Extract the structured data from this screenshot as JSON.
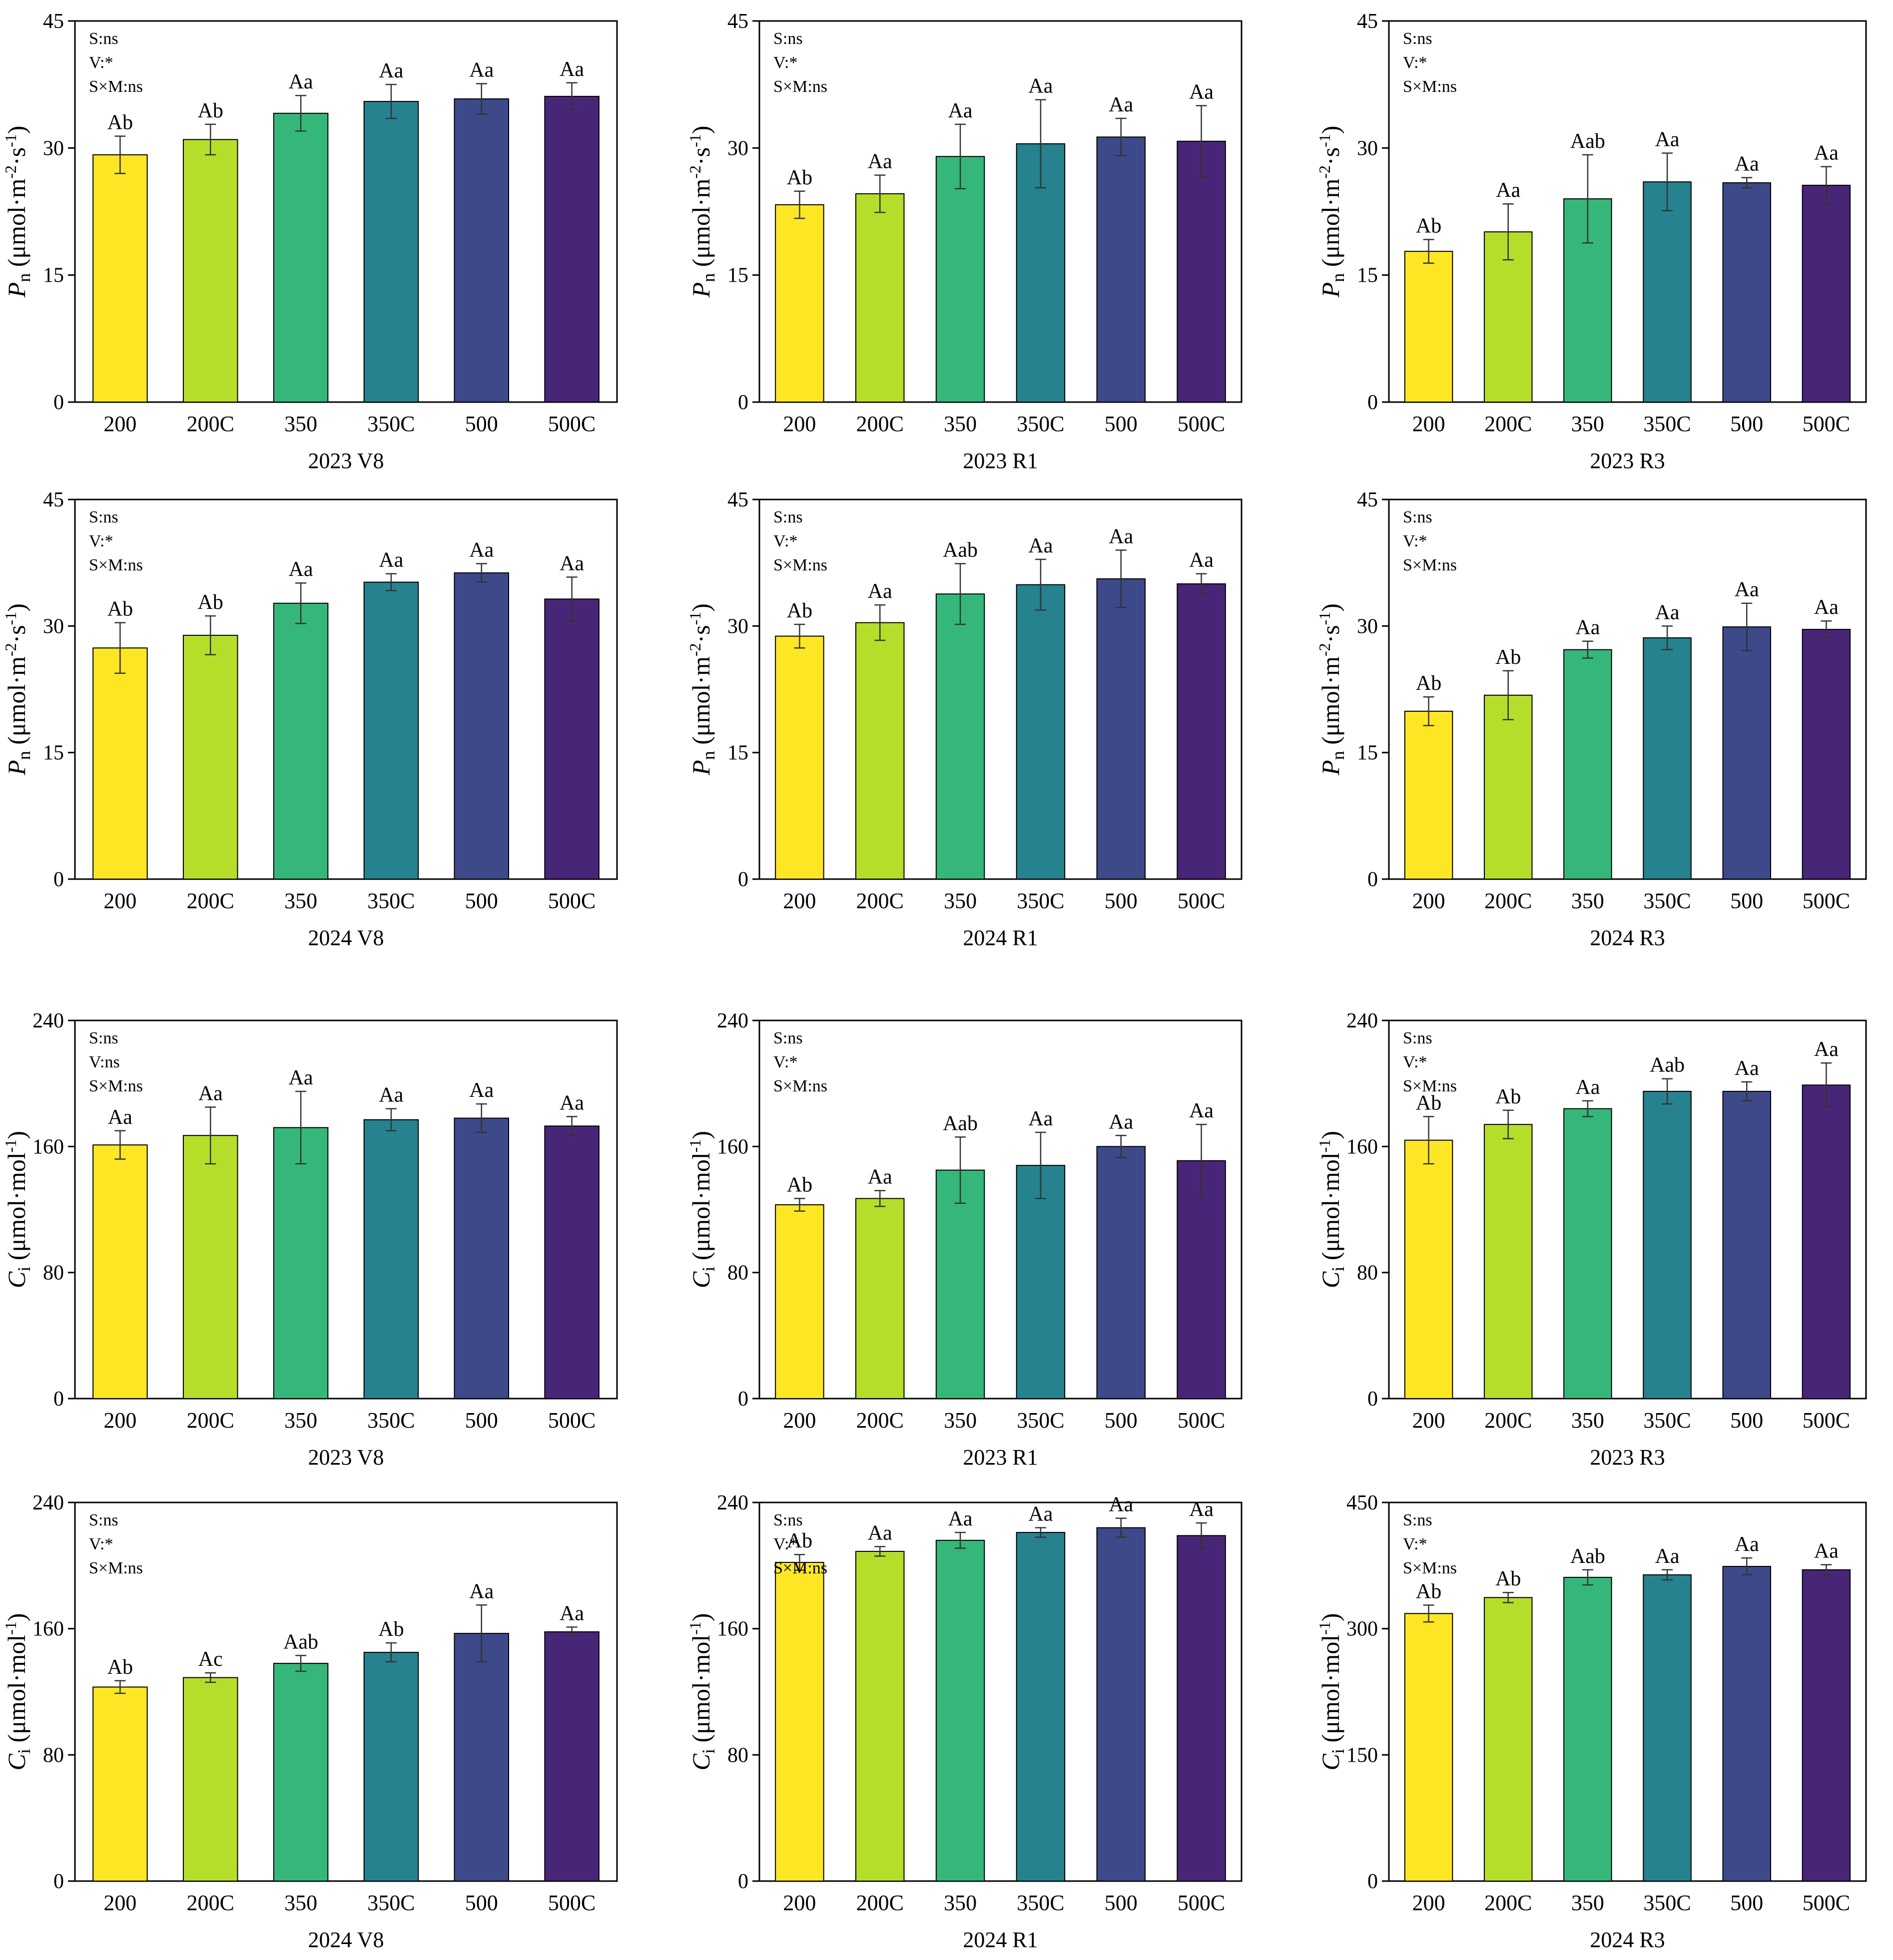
{
  "colors": {
    "bars": [
      "#fde725",
      "#b5de2b",
      "#35b779",
      "#26828e",
      "#3e4989",
      "#482677"
    ],
    "axis": "#000000",
    "errorbar": "#333333"
  },
  "chart_data": [
    {
      "type": "bar",
      "title": "2023 V8",
      "ylabel": "Pn (μmol·m⁻²·s⁻¹)",
      "ylabel_parts": {
        "main": "P",
        "sub": "n",
        "unit": "(μmol·m",
        "exp1": "-2",
        "mid": "·s",
        "exp2": "-1",
        "end": ")"
      },
      "ylim": [
        0,
        45
      ],
      "yticks": [
        0,
        15,
        30,
        45
      ],
      "categories": [
        "200",
        "200C",
        "350",
        "350C",
        "500",
        "500C"
      ],
      "values": [
        29.2,
        31.0,
        34.1,
        35.5,
        35.8,
        36.1
      ],
      "errors": [
        2.2,
        1.8,
        2.1,
        2.0,
        1.8,
        1.6
      ],
      "letters": [
        "Ab",
        "Ab",
        "Aa",
        "Aa",
        "Aa",
        "Aa"
      ],
      "stats": [
        "S:ns",
        "V:*",
        "S×M:ns"
      ]
    },
    {
      "type": "bar",
      "title": "2023 R1",
      "ylabel": "Pn (μmol·m⁻²·s⁻¹)",
      "ylabel_parts": {
        "main": "P",
        "sub": "n",
        "unit": "(μmol·m",
        "exp1": "-2",
        "mid": "·s",
        "exp2": "-1",
        "end": ")"
      },
      "ylim": [
        0,
        45
      ],
      "yticks": [
        0,
        15,
        30,
        45
      ],
      "categories": [
        "200",
        "200C",
        "350",
        "350C",
        "500",
        "500C"
      ],
      "values": [
        23.3,
        24.6,
        29.0,
        30.5,
        31.3,
        30.8
      ],
      "errors": [
        1.6,
        2.2,
        3.8,
        5.2,
        2.2,
        4.2
      ],
      "letters": [
        "Ab",
        "Aa",
        "Aa",
        "Aa",
        "Aa",
        "Aa"
      ],
      "stats": [
        "S:ns",
        "V:*",
        "S×M:ns"
      ]
    },
    {
      "type": "bar",
      "title": "2023 R3",
      "ylabel": "Pn (μmol·m⁻²·s⁻¹)",
      "ylabel_parts": {
        "main": "P",
        "sub": "n",
        "unit": "(μmol·m",
        "exp1": "-2",
        "mid": "·s",
        "exp2": "-1",
        "end": ")"
      },
      "ylim": [
        0,
        45
      ],
      "yticks": [
        0,
        15,
        30,
        45
      ],
      "categories": [
        "200",
        "200C",
        "350",
        "350C",
        "500",
        "500C"
      ],
      "values": [
        17.8,
        20.1,
        24.0,
        26.0,
        25.9,
        25.6
      ],
      "errors": [
        1.4,
        3.3,
        5.2,
        3.4,
        0.6,
        2.2
      ],
      "letters": [
        "Ab",
        "Aa",
        "Aab",
        "Aa",
        "Aa",
        "Aa"
      ],
      "stats": [
        "S:ns",
        "V:*",
        "S×M:ns"
      ]
    },
    {
      "type": "bar",
      "title": "2024 V8",
      "ylabel": "Pn (μmol·m⁻²·s⁻¹)",
      "ylabel_parts": {
        "main": "P",
        "sub": "n",
        "unit": "(μmol·m",
        "exp1": "-2",
        "mid": "·s",
        "exp2": "-1",
        "end": ")"
      },
      "ylim": [
        0,
        45
      ],
      "yticks": [
        0,
        15,
        30,
        45
      ],
      "categories": [
        "200",
        "200C",
        "350",
        "350C",
        "500",
        "500C"
      ],
      "values": [
        27.4,
        28.9,
        32.7,
        35.2,
        36.3,
        33.2
      ],
      "errors": [
        3.0,
        2.3,
        2.4,
        1.0,
        1.1,
        2.6
      ],
      "letters": [
        "Ab",
        "Ab",
        "Aa",
        "Aa",
        "Aa",
        "Aa"
      ],
      "stats": [
        "S:ns",
        "V:*",
        "S×M:ns"
      ]
    },
    {
      "type": "bar",
      "title": "2024 R1",
      "ylabel": "Pn (μmol·m⁻²·s⁻¹)",
      "ylabel_parts": {
        "main": "P",
        "sub": "n",
        "unit": "(μmol·m",
        "exp1": "-2",
        "mid": "·s",
        "exp2": "-1",
        "end": ")"
      },
      "ylim": [
        0,
        45
      ],
      "yticks": [
        0,
        15,
        30,
        45
      ],
      "categories": [
        "200",
        "200C",
        "350",
        "350C",
        "500",
        "500C"
      ],
      "values": [
        28.8,
        30.4,
        33.8,
        34.9,
        35.6,
        35.0
      ],
      "errors": [
        1.4,
        2.1,
        3.6,
        3.0,
        3.4,
        1.2
      ],
      "letters": [
        "Ab",
        "Aa",
        "Aab",
        "Aa",
        "Aa",
        "Aa"
      ],
      "stats": [
        "S:ns",
        "V:*",
        "S×M:ns"
      ]
    },
    {
      "type": "bar",
      "title": "2024 R3",
      "ylabel": "Pn (μmol·m⁻²·s⁻¹)",
      "ylabel_parts": {
        "main": "P",
        "sub": "n",
        "unit": "(μmol·m",
        "exp1": "-2",
        "mid": "·s",
        "exp2": "-1",
        "end": ")"
      },
      "ylim": [
        0,
        45
      ],
      "yticks": [
        0,
        15,
        30,
        45
      ],
      "categories": [
        "200",
        "200C",
        "350",
        "350C",
        "500",
        "500C"
      ],
      "values": [
        19.9,
        21.8,
        27.2,
        28.6,
        29.9,
        29.6
      ],
      "errors": [
        1.7,
        2.9,
        1.0,
        1.4,
        2.8,
        1.0
      ],
      "letters": [
        "Ab",
        "Ab",
        "Aa",
        "Aa",
        "Aa",
        "Aa"
      ],
      "stats": [
        "S:ns",
        "V:*",
        "S×M:ns"
      ]
    },
    {
      "type": "bar",
      "title": "2023 V8",
      "ylabel": "Ci (μmol·mol⁻¹)",
      "ylabel_parts": {
        "main": "C",
        "sub": "i",
        "unit": "(μmol·mol",
        "exp1": "-1",
        "mid": "",
        "exp2": "",
        "end": ")"
      },
      "ylim": [
        0,
        240
      ],
      "yticks": [
        0,
        80,
        160,
        240
      ],
      "categories": [
        "200",
        "200C",
        "350",
        "350C",
        "500",
        "500C"
      ],
      "values": [
        161,
        167,
        172,
        177,
        178,
        173
      ],
      "errors": [
        9,
        18,
        23,
        7,
        9,
        6
      ],
      "letters": [
        "Aa",
        "Aa",
        "Aa",
        "Aa",
        "Aa",
        "Aa"
      ],
      "stats": [
        "S:ns",
        "V:ns",
        "S×M:ns"
      ]
    },
    {
      "type": "bar",
      "title": "2023 R1",
      "ylabel": "Ci (μmol·mol⁻¹)",
      "ylabel_parts": {
        "main": "C",
        "sub": "i",
        "unit": "(μmol·mol",
        "exp1": "-1",
        "mid": "",
        "exp2": "",
        "end": ")"
      },
      "ylim": [
        0,
        240
      ],
      "yticks": [
        0,
        80,
        160,
        240
      ],
      "categories": [
        "200",
        "200C",
        "350",
        "350C",
        "500",
        "500C"
      ],
      "values": [
        123,
        127,
        145,
        148,
        160,
        151
      ],
      "errors": [
        4,
        5,
        21,
        21,
        7,
        23
      ],
      "letters": [
        "Ab",
        "Aa",
        "Aab",
        "Aa",
        "Aa",
        "Aa"
      ],
      "stats": [
        "S:ns",
        "V:*",
        "S×M:ns"
      ]
    },
    {
      "type": "bar",
      "title": "2023 R3",
      "ylabel": "Ci (μmol·mol⁻¹)",
      "ylabel_parts": {
        "main": "C",
        "sub": "i",
        "unit": "(μmol·mol",
        "exp1": "-1",
        "mid": "",
        "exp2": "",
        "end": ")"
      },
      "ylim": [
        0,
        240
      ],
      "yticks": [
        0,
        80,
        160,
        240
      ],
      "categories": [
        "200",
        "200C",
        "350",
        "350C",
        "500",
        "500C"
      ],
      "values": [
        164,
        174,
        184,
        195,
        195,
        199
      ],
      "errors": [
        15,
        9,
        5,
        8,
        6,
        14
      ],
      "letters": [
        "Ab",
        "Ab",
        "Aa",
        "Aab",
        "Aa",
        "Aa"
      ],
      "stats": [
        "S:ns",
        "V:*",
        "S×M:ns"
      ]
    },
    {
      "type": "bar",
      "title": "2024 V8",
      "ylabel": "Ci (μmol·mol⁻¹)",
      "ylabel_parts": {
        "main": "C",
        "sub": "i",
        "unit": "(μmol·mol",
        "exp1": "-1",
        "mid": "",
        "exp2": "",
        "end": ")"
      },
      "ylim": [
        0,
        240
      ],
      "yticks": [
        0,
        80,
        160,
        240
      ],
      "categories": [
        "200",
        "200C",
        "350",
        "350C",
        "500",
        "500C"
      ],
      "values": [
        123,
        129,
        138,
        145,
        157,
        158
      ],
      "errors": [
        4,
        3,
        5,
        6,
        18,
        3
      ],
      "letters": [
        "Ab",
        "Ac",
        "Aab",
        "Ab",
        "Aa",
        "Aa"
      ],
      "stats": [
        "S:ns",
        "V:*",
        "S×M:ns"
      ]
    },
    {
      "type": "bar",
      "title": "2024 R1",
      "ylabel": "Ci (μmol·mol⁻¹)",
      "ylabel_parts": {
        "main": "C",
        "sub": "i",
        "unit": "(μmol·mol",
        "exp1": "-1",
        "mid": "",
        "exp2": "",
        "end": ")"
      },
      "ylim": [
        0,
        240
      ],
      "yticks": [
        0,
        80,
        160,
        240
      ],
      "categories": [
        "200",
        "200C",
        "350",
        "350C",
        "500",
        "500C"
      ],
      "values": [
        202,
        209,
        216,
        221,
        224,
        219
      ],
      "errors": [
        5,
        3,
        5,
        3,
        6,
        8
      ],
      "letters": [
        "Ab",
        "Aa",
        "Aa",
        "Aa",
        "Aa",
        "Aa"
      ],
      "stats": [
        "S:ns",
        "V:*",
        "S×M:ns"
      ]
    },
    {
      "type": "bar",
      "title": "2024 R3",
      "ylabel": "Ci (μmol·mol⁻¹)",
      "ylabel_parts": {
        "main": "C",
        "sub": "i",
        "unit": "(μmol·mol",
        "exp1": "-1",
        "mid": "",
        "exp2": "",
        "end": ")"
      },
      "ylim": [
        0,
        450
      ],
      "yticks": [
        0,
        150,
        300,
        450
      ],
      "categories": [
        "200",
        "200C",
        "350",
        "350C",
        "500",
        "500C"
      ],
      "values": [
        318,
        337,
        361,
        364,
        374,
        370
      ],
      "errors": [
        10,
        6,
        9,
        6,
        10,
        6
      ],
      "letters": [
        "Ab",
        "Ab",
        "Aab",
        "Aa",
        "Aa",
        "Aa"
      ],
      "stats": [
        "S:ns",
        "V:*",
        "S×M:ns"
      ]
    }
  ]
}
